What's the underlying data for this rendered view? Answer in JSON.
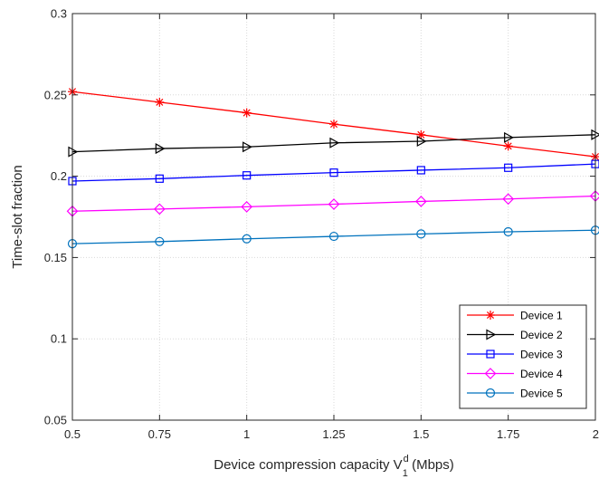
{
  "chart_data": {
    "type": "line",
    "xlabel": "Device compression capacity V",
    "xlabel_sup": "d",
    "xlabel_sub": "1",
    "xlabel_unit": " (Mbps)",
    "ylabel": "Time-slot fraction",
    "xlim": [
      0.5,
      2
    ],
    "ylim": [
      0.05,
      0.3
    ],
    "grid": true,
    "legend_position": "bottom-right",
    "x": [
      0.5,
      0.75,
      1,
      1.25,
      1.5,
      1.75,
      2
    ],
    "x_tick_values": [
      0.5,
      0.75,
      1,
      1.25,
      1.5,
      1.75,
      2
    ],
    "x_tick_labels": [
      "0.5",
      "0.75",
      "1",
      "1.25",
      "1.5",
      "1.75",
      "2"
    ],
    "y_tick_values": [
      0.05,
      0.1,
      0.15,
      0.2,
      0.25,
      0.3
    ],
    "y_tick_labels": [
      "0.05",
      "0.1",
      "0.15",
      "0.2",
      "0.25",
      "0.3"
    ],
    "series": [
      {
        "name": "Device 1",
        "color": "#ff0000",
        "marker": "asterisk",
        "values": [
          0.252,
          0.2455,
          0.239,
          0.232,
          0.2255,
          0.2185,
          0.212
        ]
      },
      {
        "name": "Device 2",
        "color": "#000000",
        "marker": "triangle-right",
        "values": [
          0.215,
          0.217,
          0.218,
          0.2205,
          0.2215,
          0.2238,
          0.2255
        ]
      },
      {
        "name": "Device 3",
        "color": "#0000ff",
        "marker": "square",
        "values": [
          0.197,
          0.1985,
          0.2005,
          0.2022,
          0.2037,
          0.2052,
          0.2075
        ]
      },
      {
        "name": "Device 4",
        "color": "#ff00ff",
        "marker": "diamond",
        "values": [
          0.1785,
          0.1798,
          0.1812,
          0.1828,
          0.1845,
          0.186,
          0.1878
        ]
      },
      {
        "name": "Device 5",
        "color": "#0072bd",
        "marker": "circle",
        "values": [
          0.1585,
          0.1598,
          0.1615,
          0.163,
          0.1645,
          0.1658,
          0.1668
        ]
      }
    ]
  }
}
